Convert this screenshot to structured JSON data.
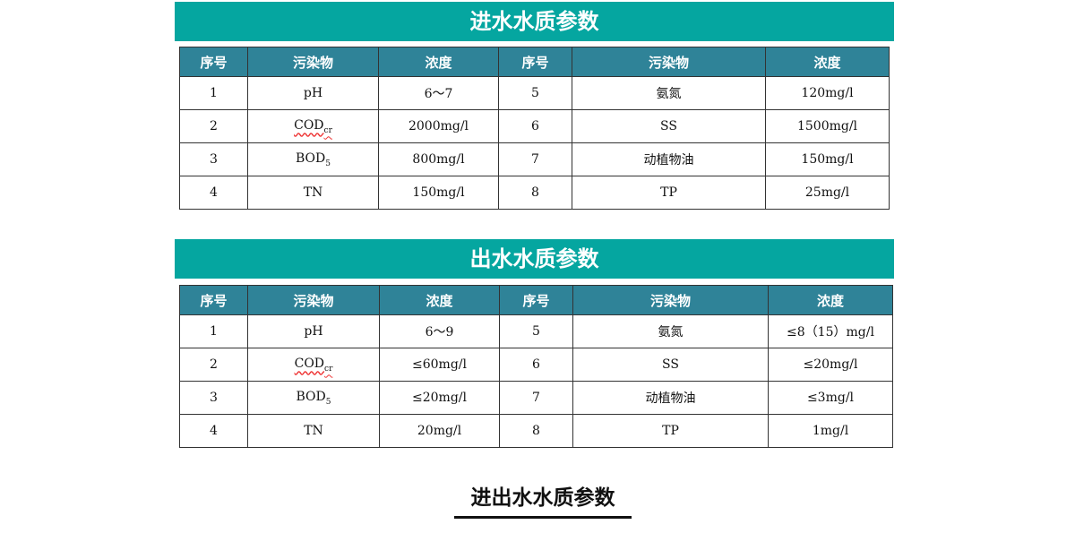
{
  "inlet": {
    "title": "进水水质参数",
    "headers": [
      "序号",
      "污染物",
      "浓度",
      "序号",
      "污染物",
      "浓度"
    ],
    "rows": [
      [
        "1",
        "pH",
        "",
        "6～7",
        "5",
        "氨氮",
        "120mg/l"
      ],
      [
        "2",
        "COD",
        "cr",
        "2000mg/l",
        "6",
        "SS",
        "1500mg/l"
      ],
      [
        "3",
        "BOD",
        "5",
        "800mg/l",
        "7",
        "动植物油",
        "150mg/l"
      ],
      [
        "4",
        "TN",
        "",
        "150mg/l",
        "8",
        "TP",
        "25mg/l"
      ]
    ]
  },
  "outlet": {
    "title": "出水水质参数",
    "headers": [
      "序号",
      "污染物",
      "浓度",
      "序号",
      "污染物",
      "浓度"
    ],
    "rows": [
      [
        "1",
        "pH",
        "",
        "6～9",
        "5",
        "氨氮",
        "≤8（15）mg/l"
      ],
      [
        "2",
        "COD",
        "cr",
        "≤60mg/l",
        "6",
        "SS",
        "≤20mg/l"
      ],
      [
        "3",
        "BOD",
        "5",
        "≤20mg/l",
        "7",
        "动植物油",
        "≤3mg/l"
      ],
      [
        "4",
        "TN",
        "",
        "20mg/l",
        "8",
        "TP",
        "1mg/l"
      ]
    ]
  },
  "footer": {
    "title": "进出水水质参数"
  },
  "colors": {
    "banner": "#05a6a0",
    "header": "#2f8398"
  }
}
